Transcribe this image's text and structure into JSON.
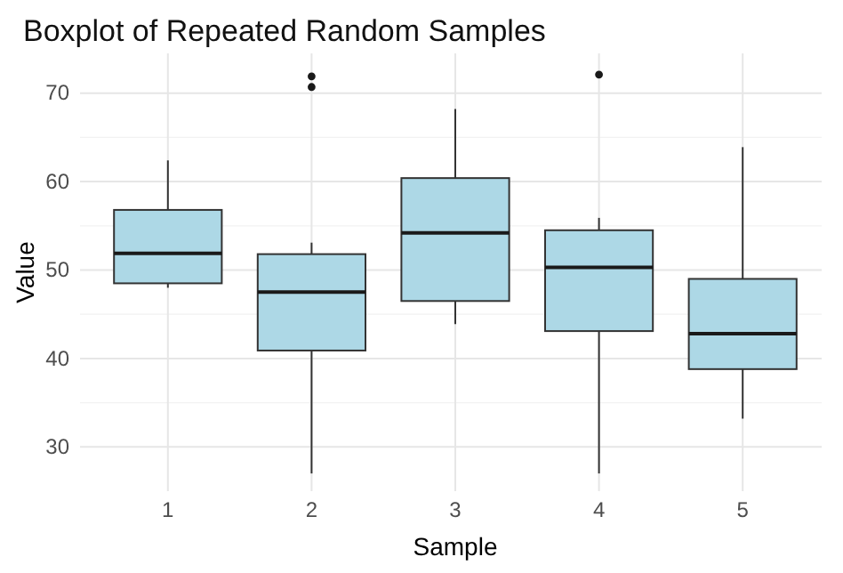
{
  "chart_data": {
    "type": "box",
    "title": "Boxplot of Repeated Random Samples",
    "xlabel": "Sample",
    "ylabel": "Value",
    "categories": [
      "1",
      "2",
      "3",
      "4",
      "5"
    ],
    "color": "#add8e6",
    "boxes": [
      {
        "low": 48,
        "q1": 48.5,
        "median": 51.9,
        "q3": 56.8,
        "high": 62.4
      },
      {
        "low": 27,
        "q1": 40.9,
        "median": 47.5,
        "q3": 51.8,
        "high": 53.1,
        "outliers": [
          71.9,
          70.7
        ]
      },
      {
        "low": 43.9,
        "q1": 46.5,
        "median": 54.2,
        "q3": 60.4,
        "high": 68.2
      },
      {
        "low": 27,
        "q1": 43.1,
        "median": 50.3,
        "q3": 54.5,
        "high": 55.9,
        "outliers": [
          72.1
        ]
      },
      {
        "low": 33.2,
        "q1": 38.8,
        "median": 42.8,
        "q3": 49,
        "high": 63.9
      }
    ],
    "ylim": [
      25,
      74.5
    ],
    "yticks": [
      30,
      {
        "value": 35,
        "label": null
      },
      40,
      {
        "value": 45,
        "label": null
      },
      50,
      {
        "value": 55,
        "label": null
      },
      60,
      {
        "value": 65,
        "label": null
      },
      70
    ],
    "grid": true
  }
}
